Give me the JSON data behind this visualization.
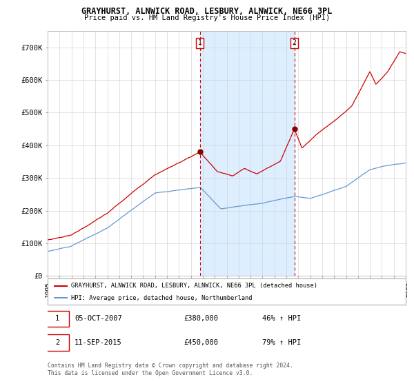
{
  "title": "GRAYHURST, ALNWICK ROAD, LESBURY, ALNWICK, NE66 3PL",
  "subtitle": "Price paid vs. HM Land Registry's House Price Index (HPI)",
  "legend_red": "GRAYHURST, ALNWICK ROAD, LESBURY, ALNWICK, NE66 3PL (detached house)",
  "legend_blue": "HPI: Average price, detached house, Northumberland",
  "footnote": "Contains HM Land Registry data © Crown copyright and database right 2024.\nThis data is licensed under the Open Government Licence v3.0.",
  "sale1_date": "05-OCT-2007",
  "sale1_price": 380000,
  "sale1_label": "1",
  "sale1_hpi": "46% ↑ HPI",
  "sale2_date": "11-SEP-2015",
  "sale2_price": 450000,
  "sale2_label": "2",
  "sale2_hpi": "79% ↑ HPI",
  "shade_color": "#ddeeff",
  "red_color": "#cc0000",
  "blue_color": "#6699cc",
  "grid_color": "#cccccc",
  "ylim": [
    0,
    750000
  ],
  "yticks": [
    0,
    100000,
    200000,
    300000,
    400000,
    500000,
    600000,
    700000
  ],
  "ytick_labels": [
    "£0",
    "£100K",
    "£200K",
    "£300K",
    "£400K",
    "£500K",
    "£600K",
    "£700K"
  ],
  "start_year": 1995,
  "end_year": 2025
}
